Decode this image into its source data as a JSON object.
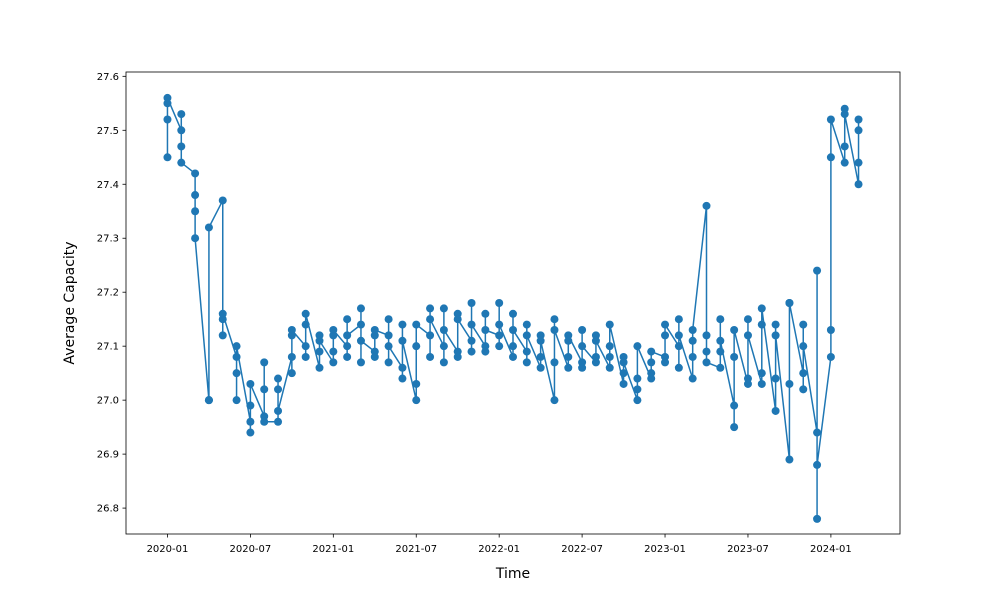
{
  "chart_data": {
    "type": "line",
    "xlabel": "Time",
    "ylabel": "Average Capacity",
    "color": "#1f77b4",
    "marker": "circle",
    "x": [
      "2020-01",
      "2020-01",
      "2020-01",
      "2020-01",
      "2020-02",
      "2020-02",
      "2020-02",
      "2020-02",
      "2020-03",
      "2020-03",
      "2020-03",
      "2020-03",
      "2020-04",
      "2020-04",
      "2020-04",
      "2020-04",
      "2020-05",
      "2020-05",
      "2020-05",
      "2020-05",
      "2020-06",
      "2020-06",
      "2020-06",
      "2020-06",
      "2020-07",
      "2020-07",
      "2020-07",
      "2020-07",
      "2020-08",
      "2020-08",
      "2020-08",
      "2020-08",
      "2020-09",
      "2020-09",
      "2020-09",
      "2020-09",
      "2020-10",
      "2020-10",
      "2020-10",
      "2020-10",
      "2020-11",
      "2020-11",
      "2020-11",
      "2020-11",
      "2020-12",
      "2020-12",
      "2020-12",
      "2020-12",
      "2021-01",
      "2021-01",
      "2021-01",
      "2021-01",
      "2021-02",
      "2021-02",
      "2021-02",
      "2021-02",
      "2021-03",
      "2021-03",
      "2021-03",
      "2021-03",
      "2021-04",
      "2021-04",
      "2021-04",
      "2021-04",
      "2021-05",
      "2021-05",
      "2021-05",
      "2021-05",
      "2021-06",
      "2021-06",
      "2021-06",
      "2021-06",
      "2021-07",
      "2021-07",
      "2021-07",
      "2021-07",
      "2021-08",
      "2021-08",
      "2021-08",
      "2021-08",
      "2021-09",
      "2021-09",
      "2021-09",
      "2021-09",
      "2021-10",
      "2021-10",
      "2021-10",
      "2021-10",
      "2021-11",
      "2021-11",
      "2021-11",
      "2021-11",
      "2021-12",
      "2021-12",
      "2021-12",
      "2021-12",
      "2022-01",
      "2022-01",
      "2022-01",
      "2022-01",
      "2022-02",
      "2022-02",
      "2022-02",
      "2022-02",
      "2022-03",
      "2022-03",
      "2022-03",
      "2022-03",
      "2022-04",
      "2022-04",
      "2022-04",
      "2022-04",
      "2022-05",
      "2022-05",
      "2022-05",
      "2022-05",
      "2022-06",
      "2022-06",
      "2022-06",
      "2022-06",
      "2022-07",
      "2022-07",
      "2022-07",
      "2022-07",
      "2022-08",
      "2022-08",
      "2022-08",
      "2022-08",
      "2022-09",
      "2022-09",
      "2022-09",
      "2022-09",
      "2022-10",
      "2022-10",
      "2022-10",
      "2022-10",
      "2022-11",
      "2022-11",
      "2022-11",
      "2022-11",
      "2022-12",
      "2022-12",
      "2022-12",
      "2022-12",
      "2023-01",
      "2023-01",
      "2023-01",
      "2023-01",
      "2023-02",
      "2023-02",
      "2023-02",
      "2023-02",
      "2023-03",
      "2023-03",
      "2023-03",
      "2023-03",
      "2023-04",
      "2023-04",
      "2023-04",
      "2023-04",
      "2023-05",
      "2023-05",
      "2023-05",
      "2023-05",
      "2023-06",
      "2023-06",
      "2023-06",
      "2023-06",
      "2023-07",
      "2023-07",
      "2023-07",
      "2023-07",
      "2023-08",
      "2023-08",
      "2023-08",
      "2023-08",
      "2023-09",
      "2023-09",
      "2023-09",
      "2023-09",
      "2023-10",
      "2023-10",
      "2023-10",
      "2023-10",
      "2023-11",
      "2023-11",
      "2023-11",
      "2023-11",
      "2023-12",
      "2023-12",
      "2023-12",
      "2023-12",
      "2024-01",
      "2024-01",
      "2024-01",
      "2024-01",
      "2024-02",
      "2024-02",
      "2024-02",
      "2024-02",
      "2024-03",
      "2024-03",
      "2024-03",
      "2024-03"
    ],
    "values": [
      27.45,
      27.55,
      27.52,
      27.56,
      27.5,
      27.47,
      27.53,
      27.44,
      27.42,
      27.38,
      27.35,
      27.3,
      27.0,
      27.0,
      27.0,
      27.32,
      27.37,
      27.15,
      27.12,
      27.16,
      27.08,
      27.05,
      27.0,
      27.1,
      26.96,
      26.94,
      26.99,
      27.03,
      26.97,
      27.07,
      27.02,
      26.96,
      26.96,
      27.02,
      27.04,
      26.98,
      27.08,
      27.12,
      27.05,
      27.13,
      27.1,
      27.14,
      27.08,
      27.16,
      27.06,
      27.12,
      27.09,
      27.11,
      27.07,
      27.12,
      27.09,
      27.13,
      27.1,
      27.15,
      27.08,
      27.12,
      27.14,
      27.17,
      27.07,
      27.11,
      27.09,
      27.12,
      27.08,
      27.13,
      27.12,
      27.15,
      27.07,
      27.1,
      27.06,
      27.14,
      27.04,
      27.11,
      27.0,
      27.1,
      27.03,
      27.14,
      27.12,
      27.17,
      27.08,
      27.15,
      27.1,
      27.17,
      27.07,
      27.13,
      27.09,
      27.16,
      27.08,
      27.15,
      27.11,
      27.18,
      27.09,
      27.14,
      27.1,
      27.16,
      27.09,
      27.13,
      27.12,
      27.18,
      27.1,
      27.14,
      27.08,
      27.16,
      27.1,
      27.13,
      27.09,
      27.14,
      27.07,
      27.12,
      27.06,
      27.12,
      27.08,
      27.11,
      27.0,
      27.15,
      27.07,
      27.13,
      27.06,
      27.11,
      27.08,
      27.12,
      27.07,
      27.13,
      27.06,
      27.1,
      27.07,
      27.12,
      27.08,
      27.11,
      27.06,
      27.1,
      27.08,
      27.14,
      27.03,
      27.08,
      27.05,
      27.07,
      27.0,
      27.04,
      27.02,
      27.1,
      27.04,
      27.07,
      27.05,
      27.09,
      27.08,
      27.12,
      27.07,
      27.14,
      27.1,
      27.15,
      27.06,
      27.12,
      27.04,
      27.11,
      27.08,
      27.13,
      27.36,
      27.09,
      27.12,
      27.07,
      27.06,
      27.15,
      27.09,
      27.11,
      26.99,
      27.08,
      26.95,
      27.13,
      27.03,
      27.15,
      27.04,
      27.12,
      27.03,
      27.14,
      27.05,
      27.17,
      26.98,
      27.14,
      27.04,
      27.12,
      26.89,
      27.18,
      27.03,
      27.18,
      27.05,
      27.14,
      27.02,
      27.1,
      26.94,
      26.78,
      27.24,
      26.88,
      27.08,
      27.13,
      27.45,
      27.52,
      27.44,
      27.54,
      27.47,
      27.53,
      27.4,
      27.52,
      27.44,
      27.5
    ],
    "xlim": [
      "2019-10",
      "2024-06"
    ],
    "xticks": [
      "2020-01",
      "2020-07",
      "2021-01",
      "2021-07",
      "2022-01",
      "2022-07",
      "2023-01",
      "2023-07",
      "2024-01"
    ],
    "ylim": [
      26.752,
      27.608
    ],
    "yticks": [
      26.8,
      26.9,
      {
        "value": 27,
        "label": "27.0"
      },
      27.1,
      27.2,
      27.3,
      27.4,
      27.5,
      27.6
    ]
  }
}
